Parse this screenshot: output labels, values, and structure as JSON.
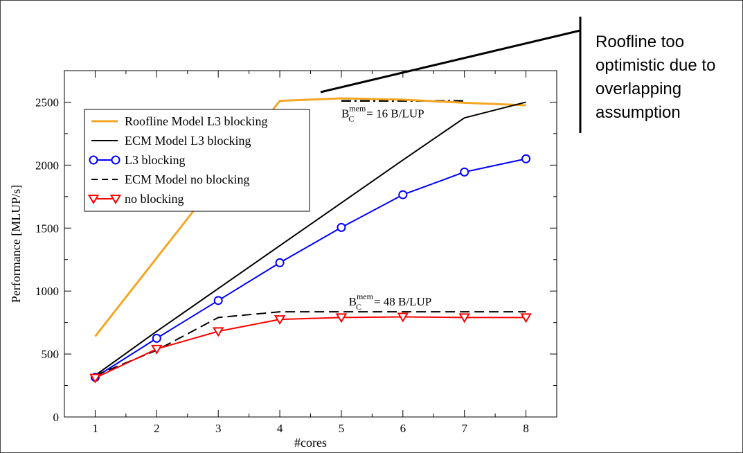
{
  "chart_data": {
    "type": "line",
    "title": "",
    "xlabel": "#cores",
    "ylabel": "Performance [MLUP/s]",
    "xlim": [
      0.5,
      8.5
    ],
    "ylim": [
      0,
      2750
    ],
    "x_ticks": [
      "1",
      "2",
      "3",
      "4",
      "5",
      "6",
      "7",
      "8"
    ],
    "y_ticks": [
      "0",
      "500",
      "1000",
      "1500",
      "2000",
      "2500"
    ],
    "legend_position": "top-left",
    "series": [
      {
        "name": "Roofline Model L3 blocking",
        "color": "#f5a623",
        "style": "solid",
        "marker": "none",
        "x": [
          1,
          4,
          5,
          6,
          7,
          8
        ],
        "y": [
          640,
          2510,
          2530,
          2520,
          2495,
          2475
        ]
      },
      {
        "name": "ECM Model L3 blocking",
        "color": "#000000",
        "style": "solid",
        "marker": "none",
        "x": [
          1,
          2,
          3,
          4,
          5,
          6,
          7,
          8
        ],
        "y": [
          330,
          680,
          1020,
          1360,
          1700,
          2040,
          2375,
          2500
        ]
      },
      {
        "name": "L3 blocking",
        "color": "#0000ff",
        "style": "solid",
        "marker": "circle",
        "x": [
          1,
          2,
          3,
          4,
          5,
          6,
          7,
          8
        ],
        "y": [
          315,
          625,
          925,
          1225,
          1505,
          1765,
          1945,
          2050
        ]
      },
      {
        "name": "ECM Model no blocking",
        "color": "#000000",
        "style": "dashed",
        "marker": "none",
        "x": [
          1,
          2,
          3,
          4,
          5,
          6,
          7,
          8
        ],
        "y": [
          330,
          530,
          790,
          835,
          835,
          835,
          835,
          835
        ]
      },
      {
        "name": "no blocking",
        "color": "#ff0000",
        "style": "solid",
        "marker": "triangle-down",
        "x": [
          1,
          2,
          3,
          4,
          5,
          6,
          7,
          8
        ],
        "y": [
          310,
          540,
          680,
          775,
          790,
          795,
          790,
          790
        ]
      }
    ],
    "reference_lines": [
      {
        "style": "dash-dot",
        "color": "#000000",
        "x": [
          5,
          7
        ],
        "y": [
          2510,
          2510
        ]
      }
    ],
    "annotations": [
      {
        "label": "B",
        "sub": "C",
        "sup": "mem",
        "value": "= 16 B/LUP",
        "x": 5,
        "y": 2380
      },
      {
        "label": "B",
        "sub": "C",
        "sup": "mem",
        "value": "= 48 B/LUP",
        "x": 5.12,
        "y": 885
      }
    ],
    "callout": {
      "lines": [
        "Roofline too",
        "optimistic due to",
        "overlapping",
        "assumption"
      ]
    }
  }
}
